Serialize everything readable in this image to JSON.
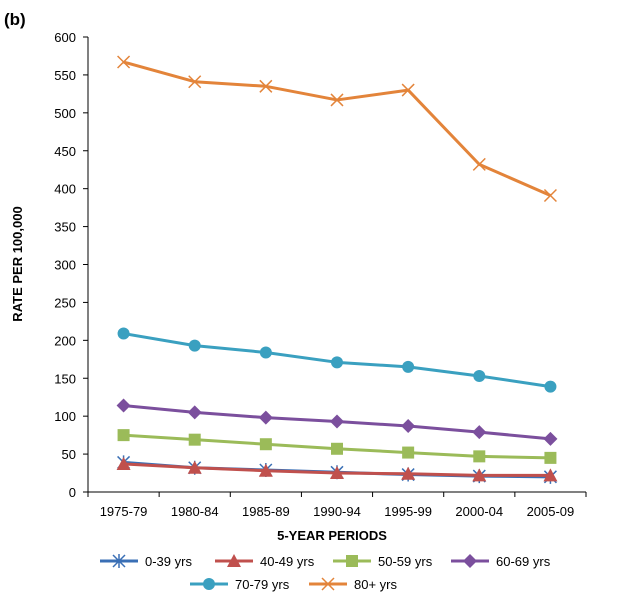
{
  "chart_data": {
    "type": "line",
    "panel_label": "(b)",
    "xlabel": "5-YEAR PERIODS",
    "ylabel": "RATE PER 100,000",
    "ylim": [
      0,
      600
    ],
    "yticks": [
      0,
      50,
      100,
      150,
      200,
      250,
      300,
      350,
      400,
      450,
      500,
      550,
      600
    ],
    "categories": [
      "1975-79",
      "1980-84",
      "1985-89",
      "1990-94",
      "1995-99",
      "2000-04",
      "2005-09"
    ],
    "grid": false,
    "legend_position": "bottom",
    "series": [
      {
        "name": "0-39 yrs",
        "color": "#3a6fb5",
        "marker": "star",
        "values": [
          39,
          32,
          29,
          26,
          23,
          21,
          20
        ]
      },
      {
        "name": "40-49 yrs",
        "color": "#c0504d",
        "marker": "triangle",
        "values": [
          37,
          32,
          28,
          25,
          24,
          22,
          22
        ]
      },
      {
        "name": "50-59 yrs",
        "color": "#9bbb59",
        "marker": "square",
        "values": [
          75,
          69,
          63,
          57,
          52,
          47,
          45
        ]
      },
      {
        "name": "60-69 yrs",
        "color": "#7b4f9d",
        "marker": "diamond",
        "values": [
          114,
          105,
          98,
          93,
          87,
          79,
          70
        ]
      },
      {
        "name": "70-79 yrs",
        "color": "#3aa0c0",
        "marker": "circle",
        "values": [
          209,
          193,
          184,
          171,
          165,
          153,
          139
        ]
      },
      {
        "name": "80+ yrs",
        "color": "#e3843a",
        "marker": "x",
        "values": [
          567,
          541,
          535,
          517,
          530,
          432,
          391
        ]
      }
    ]
  }
}
